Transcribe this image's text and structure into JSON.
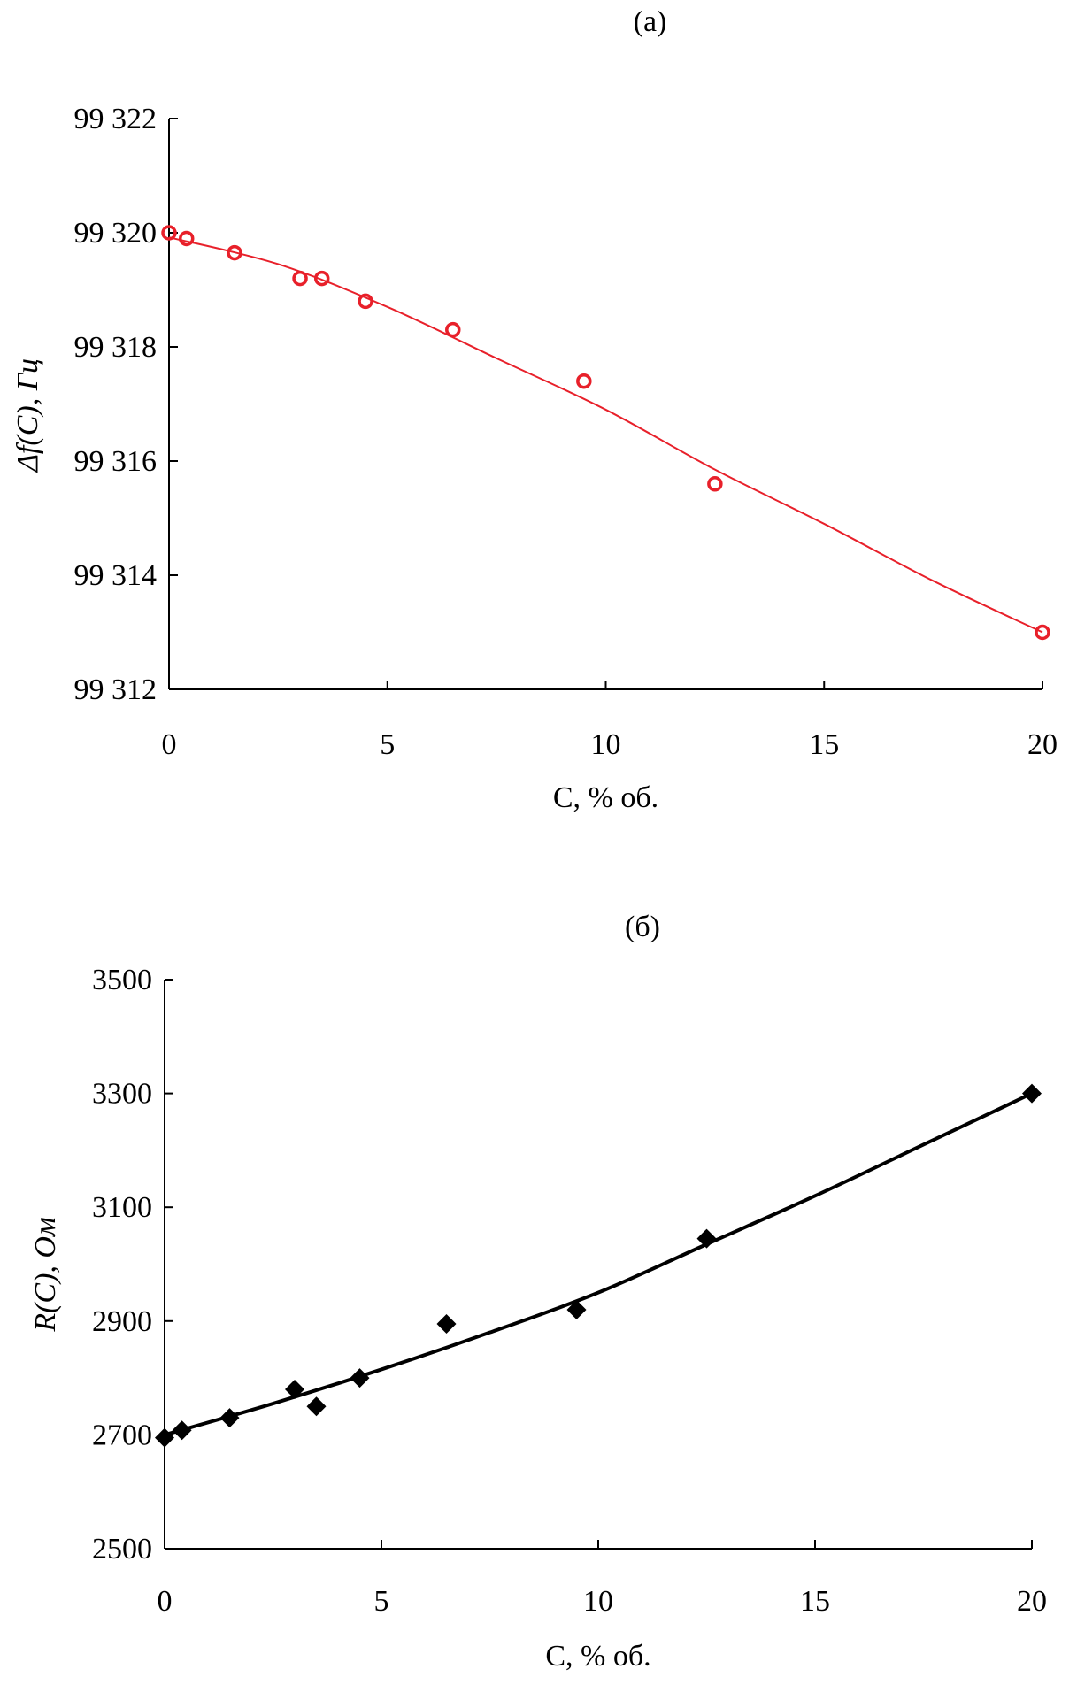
{
  "chart_data": [
    {
      "type": "scatter",
      "title": "(a)",
      "xlabel": "C, % об.",
      "ylabel": "Δf(C), Гц",
      "xlim": [
        0,
        20
      ],
      "ylim": [
        99312,
        99322
      ],
      "xticks": [
        0,
        5,
        10,
        15,
        20
      ],
      "yticks": [
        99312,
        99314,
        99316,
        99318,
        99320,
        99322
      ],
      "ytick_labels": [
        "99 312",
        "99 314",
        "99 316",
        "99 318",
        "99 320",
        "99 322"
      ],
      "xtick_labels": [
        "0",
        "5",
        "10",
        "15",
        "20"
      ],
      "color": "#e8202a",
      "marker": "open-circle",
      "points": [
        [
          0,
          99320
        ],
        [
          0.4,
          99319.9
        ],
        [
          1.5,
          99319.65
        ],
        [
          3,
          99319.2
        ],
        [
          3.5,
          99319.2
        ],
        [
          4.5,
          99318.8
        ],
        [
          6.5,
          99318.3
        ],
        [
          9.5,
          99317.4
        ],
        [
          12.5,
          99315.6
        ],
        [
          20,
          99313
        ]
      ],
      "fit": [
        [
          0,
          99319.92
        ],
        [
          2.5,
          99319.45
        ],
        [
          5,
          99318.7
        ],
        [
          7.5,
          99317.8
        ],
        [
          10,
          99316.9
        ],
        [
          12.5,
          99315.85
        ],
        [
          15,
          99314.9
        ],
        [
          17.5,
          99313.9
        ],
        [
          20,
          99313.0
        ]
      ],
      "grid": false
    },
    {
      "type": "scatter",
      "title": "(б)",
      "xlabel": "C, % об.",
      "ylabel": "R(C), Ом",
      "xlim": [
        0,
        20
      ],
      "ylim": [
        2500,
        3500
      ],
      "xticks": [
        0,
        5,
        10,
        15,
        20
      ],
      "yticks": [
        2500,
        2700,
        2900,
        3100,
        3300,
        3500
      ],
      "ytick_labels": [
        "2500",
        "2700",
        "2900",
        "3100",
        "3300",
        "3500"
      ],
      "xtick_labels": [
        "0",
        "5",
        "10",
        "15",
        "20"
      ],
      "color": "#000000",
      "marker": "filled-diamond",
      "points": [
        [
          0,
          2695
        ],
        [
          0.4,
          2708
        ],
        [
          1.5,
          2730
        ],
        [
          3,
          2780
        ],
        [
          3.5,
          2750
        ],
        [
          4.5,
          2800
        ],
        [
          6.5,
          2895
        ],
        [
          9.5,
          2920
        ],
        [
          12.5,
          3045
        ],
        [
          20,
          3300
        ]
      ],
      "fit": [
        [
          0,
          2700
        ],
        [
          2.5,
          2755
        ],
        [
          5,
          2815
        ],
        [
          7.5,
          2880
        ],
        [
          10,
          2950
        ],
        [
          12.5,
          3035
        ],
        [
          15,
          3120
        ],
        [
          17.5,
          3210
        ],
        [
          20,
          3300
        ]
      ],
      "grid": false
    }
  ]
}
